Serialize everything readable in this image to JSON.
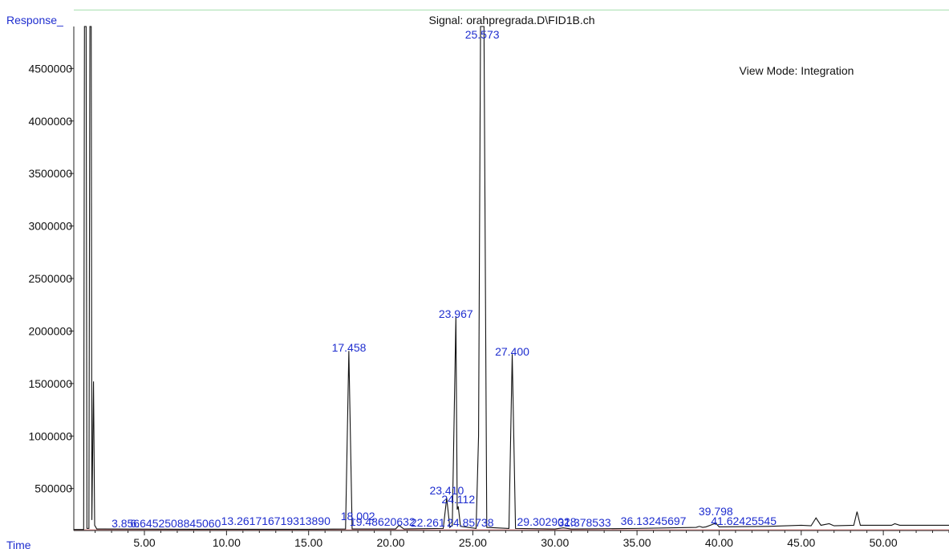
{
  "chart_data": {
    "type": "line",
    "title": "Signal: orahpregrada.D\\FID1B.ch",
    "annotation": "View Mode: Integration",
    "ylabel": "Response_",
    "xlabel": "Time",
    "xlim": [
      0.7,
      54.0
    ],
    "ylim": [
      100000,
      4900000
    ],
    "x_ticks": [
      5,
      10,
      15,
      20,
      25,
      30,
      35,
      40,
      45,
      50
    ],
    "x_tick_labels": [
      "5.00",
      "10.00",
      "15.00",
      "20.00",
      "25.00",
      "30.00",
      "35.00",
      "40.00",
      "45.00",
      "50.00"
    ],
    "y_ticks": [
      500000,
      1000000,
      1500000,
      2000000,
      2500000,
      3000000,
      3500000,
      4000000,
      4500000
    ],
    "y_tick_labels": [
      "500000",
      "1000000",
      "1500000",
      "2000000",
      "2500000",
      "3000000",
      "3500000",
      "4000000",
      "4500000"
    ],
    "series": [
      {
        "points": [
          [
            0.7,
            110000
          ],
          [
            1.3,
            110000
          ],
          [
            1.35,
            4900000
          ],
          [
            1.45,
            4900000
          ],
          [
            1.5,
            120000
          ],
          [
            1.62,
            120000
          ],
          [
            1.68,
            4900000
          ],
          [
            1.76,
            4900000
          ],
          [
            1.8,
            200000
          ],
          [
            1.9,
            1520000
          ],
          [
            1.97,
            150000
          ],
          [
            2.1,
            115000
          ],
          [
            8,
            112000
          ],
          [
            15,
            112000
          ],
          [
            17.25,
            115000
          ],
          [
            17.45,
            1810000
          ],
          [
            17.65,
            115000
          ],
          [
            20.3,
            115000
          ],
          [
            20.5,
            150000
          ],
          [
            20.8,
            115000
          ],
          [
            23.2,
            120000
          ],
          [
            23.41,
            410000
          ],
          [
            23.6,
            130000
          ],
          [
            23.75,
            150000
          ],
          [
            23.97,
            2140000
          ],
          [
            24.05,
            300000
          ],
          [
            24.112,
            330000
          ],
          [
            24.25,
            140000
          ],
          [
            25.2,
            120000
          ],
          [
            25.35,
            1000000
          ],
          [
            25.47,
            4900000
          ],
          [
            25.68,
            4900000
          ],
          [
            25.85,
            130000
          ],
          [
            27.2,
            120000
          ],
          [
            27.4,
            1780000
          ],
          [
            27.6,
            120000
          ],
          [
            30,
            115000
          ],
          [
            30.5,
            125000
          ],
          [
            31,
            115000
          ],
          [
            35,
            120000
          ],
          [
            38.6,
            130000
          ],
          [
            38.8,
            140000
          ],
          [
            39.0,
            130000
          ],
          [
            39.2,
            135000
          ],
          [
            39.8,
            170000
          ],
          [
            40.0,
            135000
          ],
          [
            43,
            140000
          ],
          [
            45.0,
            150000
          ],
          [
            45.6,
            145000
          ],
          [
            45.9,
            220000
          ],
          [
            46.2,
            150000
          ],
          [
            46.7,
            165000
          ],
          [
            47.0,
            145000
          ],
          [
            48.2,
            150000
          ],
          [
            48.4,
            280000
          ],
          [
            48.6,
            150000
          ],
          [
            50.5,
            150000
          ],
          [
            50.7,
            165000
          ],
          [
            51,
            150000
          ],
          [
            54,
            150000
          ]
        ]
      }
    ],
    "peak_labels": [
      {
        "x": 3.856,
        "text": "3.856"
      },
      {
        "x": 6.9,
        "text": "6.6452508845060"
      },
      {
        "x": 13.0,
        "text": "13.261716719313890"
      },
      {
        "x": 17.458,
        "text": "17.458"
      },
      {
        "x": 18.002,
        "text": "18.002"
      },
      {
        "x": 19.5,
        "text": "19.48620632"
      },
      {
        "x": 22.26,
        "text": "22.261"
      },
      {
        "x": 23.41,
        "text": "23.410"
      },
      {
        "x": 23.967,
        "text": "23.967"
      },
      {
        "x": 24.112,
        "text": "24.112"
      },
      {
        "x": 24.85,
        "text": "24.85738"
      },
      {
        "x": 25.573,
        "text": "25.573"
      },
      {
        "x": 27.4,
        "text": "27.400"
      },
      {
        "x": 29.5,
        "text": "29.3029028"
      },
      {
        "x": 31.8,
        "text": "31.378533"
      },
      {
        "x": 36.0,
        "text": "36.13245697"
      },
      {
        "x": 39.798,
        "text": "39.798"
      },
      {
        "x": 41.5,
        "text": "41.62425545"
      }
    ]
  }
}
